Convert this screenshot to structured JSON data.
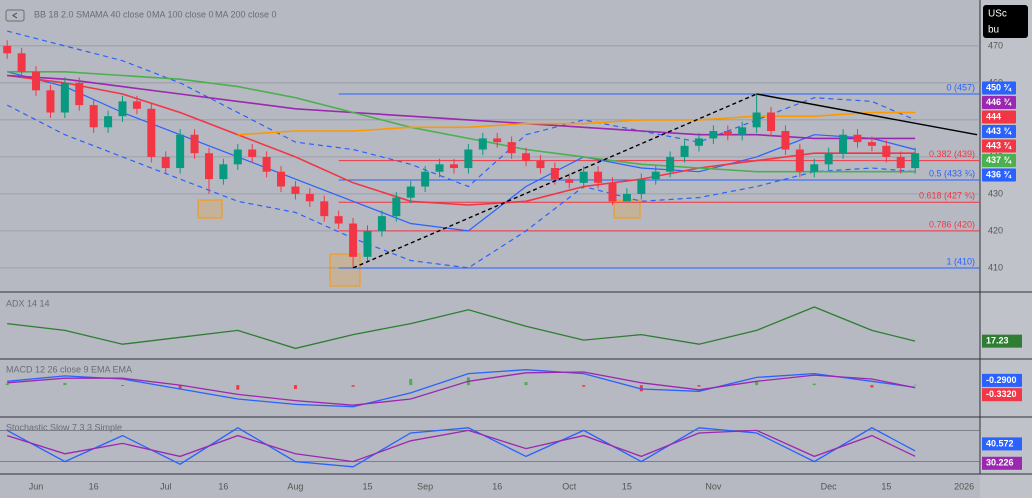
{
  "symbol": {
    "line1": "USc",
    "line2": "bu"
  },
  "chart_data": [
    {
      "type": "candlestick",
      "open": [
        470,
        468,
        463,
        458,
        452,
        460,
        454,
        448,
        451,
        455,
        453,
        440,
        437,
        446,
        441,
        434,
        438,
        442,
        440,
        436,
        432,
        430,
        428,
        424,
        422,
        413,
        420,
        424,
        429,
        432,
        436,
        438,
        437,
        442,
        445,
        444,
        441,
        439,
        437,
        434,
        433,
        436,
        433,
        428,
        430,
        434,
        436,
        440,
        443,
        445,
        447,
        446,
        448,
        452,
        447,
        442,
        436,
        438,
        441,
        446,
        444,
        443,
        440,
        437
      ],
      "high": [
        471.5,
        469.5,
        464.5,
        459.5,
        461.5,
        461.5,
        455.5,
        452.5,
        456.5,
        456.5,
        454.5,
        441.5,
        447.5,
        447.5,
        442.5,
        439.5,
        443.5,
        443.5,
        441.5,
        437.5,
        433.5,
        431.5,
        429.5,
        425.5,
        423.5,
        421.5,
        425.5,
        430.5,
        433.5,
        437.5,
        439.5,
        439.5,
        443.5,
        446.5,
        446.5,
        445.5,
        442.5,
        440.5,
        438.5,
        435.5,
        437.5,
        437.5,
        434.5,
        431.5,
        435.5,
        437.5,
        441.5,
        444.5,
        446.5,
        448.5,
        448.5,
        449.5,
        457,
        453.5,
        448.5,
        443.5,
        439.5,
        442.5,
        447.5,
        447.5,
        445.5,
        444.5,
        441.5,
        442.5
      ],
      "low": [
        466.5,
        461.5,
        456.5,
        450.5,
        450.5,
        452.5,
        446.5,
        446.5,
        449.5,
        451.5,
        438.5,
        435.5,
        435.5,
        439.5,
        430,
        432.5,
        436.5,
        438.5,
        434.5,
        430.5,
        428.5,
        426.5,
        422.5,
        420.5,
        410,
        411.5,
        418.5,
        422.5,
        427.5,
        430.5,
        434.5,
        435.5,
        435.5,
        440.5,
        442.5,
        439.5,
        437.5,
        435.5,
        432.5,
        431.5,
        431.5,
        431.5,
        427,
        428.5,
        428.5,
        432.5,
        434.5,
        438.5,
        441.5,
        443.5,
        444.5,
        444.5,
        446.5,
        445.5,
        440.5,
        434.5,
        434.5,
        436.5,
        439.5,
        442.5,
        441.5,
        438.5,
        435.5,
        435.5
      ],
      "close": [
        468,
        463,
        458,
        452,
        460,
        454,
        448,
        451,
        455,
        453,
        440,
        437,
        446,
        441,
        434,
        438,
        442,
        440,
        436,
        432,
        430,
        428,
        424,
        422,
        413,
        420,
        424,
        429,
        432,
        436,
        438,
        437,
        442,
        445,
        444,
        441,
        439,
        437,
        434,
        433,
        436,
        433,
        428,
        430,
        434,
        436,
        440,
        443,
        445,
        447,
        446,
        448,
        452,
        447,
        442,
        436,
        438,
        441,
        446,
        444,
        443,
        440,
        437,
        441
      ],
      "up_color": "#089981",
      "down_color": "#f23645",
      "xlim": [
        -0.5,
        67.5
      ],
      "xticks": [
        {
          "value": 2,
          "label": "Jun"
        },
        {
          "value": 6,
          "label": "16"
        },
        {
          "value": 11,
          "label": "Jul"
        },
        {
          "value": 15,
          "label": "16"
        },
        {
          "value": 20,
          "label": "Aug"
        },
        {
          "value": 25,
          "label": "15"
        },
        {
          "value": 29,
          "label": "Sep"
        },
        {
          "value": 34,
          "label": "16"
        },
        {
          "value": 39,
          "label": "Oct"
        },
        {
          "value": 43,
          "label": "15"
        },
        {
          "value": 49,
          "label": "Nov"
        },
        {
          "value": 57,
          "label": "Dec"
        },
        {
          "value": 61,
          "label": "15"
        },
        {
          "value": 66.4,
          "label": "2026"
        }
      ],
      "ylim": [
        403.5,
        482.4
      ],
      "yticks": [
        410,
        420,
        430,
        440,
        450,
        460,
        470
      ],
      "grid": true,
      "series": [
        {
          "name": "BB 18 2.0 SMA",
          "color": "#2962ff",
          "x": [
            0,
            4,
            8,
            12,
            16,
            20,
            24,
            28,
            32,
            36,
            40,
            44,
            48,
            52,
            56,
            60,
            63
          ],
          "values": [
            463,
            459,
            452,
            446,
            440,
            434,
            428,
            422,
            420,
            432,
            440,
            437,
            436,
            440,
            446,
            445,
            442
          ],
          "upper": [
            474,
            470,
            466,
            460,
            452,
            444,
            442,
            438,
            432,
            446,
            450,
            447,
            444,
            450,
            456,
            455,
            450
          ],
          "lower": [
            454,
            446,
            440,
            434,
            428,
            425,
            418,
            412,
            410,
            420,
            432,
            428,
            429,
            432,
            436,
            437,
            436
          ]
        },
        {
          "name": "MA 40 close 0",
          "color": "#f23645",
          "x": [
            0,
            4,
            8,
            12,
            16,
            20,
            24,
            28,
            32,
            36,
            40,
            44,
            48,
            52,
            56,
            60,
            63
          ],
          "values": [
            462,
            460,
            457,
            452,
            446,
            440,
            433,
            428,
            427,
            428,
            432,
            434,
            437,
            439,
            441,
            441,
            441
          ]
        },
        {
          "name": "MA 100 close 0",
          "color": "#9c27b0",
          "x": [
            0,
            4,
            8,
            12,
            16,
            20,
            24,
            28,
            32,
            36,
            40,
            44,
            48,
            52,
            56,
            60,
            63
          ],
          "values": [
            462,
            461,
            459,
            457,
            455,
            453,
            452,
            451,
            450,
            449,
            448,
            447,
            446,
            446,
            445,
            445,
            445
          ]
        },
        {
          "name": "MA 200 close 0",
          "color": "#4caf50",
          "x": [
            0,
            4,
            8,
            12,
            16,
            20,
            24,
            28,
            32,
            36,
            40,
            44,
            48,
            52,
            56,
            60,
            63
          ],
          "values": [
            463,
            463,
            462,
            461,
            459,
            456,
            452,
            448,
            445,
            442,
            440,
            438,
            437,
            436,
            436,
            436,
            436
          ]
        },
        {
          "color": "#ff9800",
          "x": [
            0,
            4,
            8,
            12,
            16,
            20,
            24,
            28,
            32,
            36,
            40,
            44,
            48,
            52,
            56,
            60,
            63
          ],
          "values": [
            null,
            null,
            null,
            null,
            446,
            447,
            447,
            448,
            448,
            449,
            449,
            450,
            450,
            451,
            451,
            452,
            452
          ]
        }
      ],
      "trendlines": [
        {
          "x": [
            24,
            52
          ],
          "values": [
            410,
            457
          ],
          "dashed": true,
          "color": "#000000"
        },
        {
          "x": [
            52,
            67.3
          ],
          "values": [
            457,
            446
          ],
          "dashed": false,
          "color": "#000000"
        }
      ],
      "fib": {
        "start": 23,
        "levels": [
          {
            "value": 457,
            "label": "0 (457)",
            "color": "#2962ff"
          },
          {
            "value": 439,
            "label": "0.382 (439)",
            "color": "#f23645"
          },
          {
            "value": 433.75,
            "label": "0.5 (433 ¾)",
            "color": "#2962ff"
          },
          {
            "value": 427.75,
            "label": "0.618 (427 ¾)",
            "color": "#f23645"
          },
          {
            "value": 420,
            "label": "0.786 (420)",
            "color": "#f23645"
          },
          {
            "value": 410,
            "label": "1 (410)",
            "color": "#2962ff"
          }
        ]
      },
      "price_labels": [
        {
          "label": "450 ¾",
          "color": "#2962ff"
        },
        {
          "label": "446 ¾",
          "color": "#9c27b0"
        },
        {
          "label": "444",
          "color": "#f23645"
        },
        {
          "label": "443 ¾",
          "color": "#2962ff"
        },
        {
          "label": "443 ¾",
          "color": "#f23645"
        },
        {
          "label": "437 ¾",
          "color": "#4caf50"
        },
        {
          "label": "436 ¾",
          "color": "#2962ff"
        }
      ]
    },
    {
      "type": "line",
      "title": "ADX 14 14",
      "xlim": [
        -0.5,
        67.5
      ],
      "ylim": [
        5,
        50
      ],
      "x": [
        0,
        4,
        8,
        12,
        16,
        20,
        24,
        28,
        32,
        36,
        40,
        44,
        48,
        52,
        56,
        60,
        63
      ],
      "series": [
        {
          "color": "#2e7d32",
          "values": [
            30,
            25,
            15,
            20,
            25,
            12,
            22,
            30,
            40,
            28,
            18,
            22,
            15,
            25,
            42,
            25,
            17.23
          ]
        }
      ]
    },
    {
      "type": "line",
      "title": "MACD 12 26 close 9 EMA EMA",
      "xlim": [
        -0.5,
        67.5
      ],
      "ylim": [
        -4,
        3
      ],
      "x": [
        0,
        4,
        8,
        12,
        16,
        20,
        24,
        28,
        32,
        36,
        40,
        44,
        48,
        52,
        56,
        60,
        63
      ],
      "histogram": [
        0.2,
        0.3,
        -0.1,
        -0.5,
        -0.6,
        -0.5,
        -0.2,
        0.8,
        1.0,
        0.4,
        -0.2,
        -0.8,
        -0.2,
        0.5,
        0.2,
        -0.3,
        0.042
      ],
      "up_color": "#4caf50",
      "down_color": "#f23645",
      "series": [
        {
          "color": "#2962ff",
          "values": [
            0.5,
            1.2,
            0.8,
            -0.5,
            -1.8,
            -2.5,
            -2.8,
            -1.0,
            1.5,
            2.0,
            1.5,
            -0.5,
            -0.8,
            1.0,
            1.5,
            0.5,
            -0.29
          ],
          "last_label": "-0.2900"
        },
        {
          "color": "#f23645",
          "line_color": "#9c27b0",
          "values": [
            0.3,
            0.9,
            0.9,
            0.0,
            -1.2,
            -2.0,
            -2.6,
            -1.8,
            0.5,
            1.6,
            1.7,
            0.3,
            -0.6,
            0.5,
            1.3,
            0.8,
            -0.332
          ],
          "last_label": "-0.3320"
        }
      ]
    },
    {
      "type": "line",
      "title": "Stochastic Slow 7 3 3 Simple",
      "xlim": [
        -0.5,
        67.5
      ],
      "ylim": [
        0,
        100
      ],
      "bands": [
        20,
        80
      ],
      "x": [
        0,
        4,
        8,
        12,
        16,
        20,
        24,
        28,
        32,
        36,
        40,
        44,
        48,
        52,
        56,
        60,
        63
      ],
      "series": [
        {
          "color": "#2962ff",
          "values": [
            80,
            20,
            70,
            15,
            85,
            20,
            10,
            75,
            85,
            30,
            80,
            20,
            85,
            75,
            20,
            85,
            40.572
          ]
        },
        {
          "color": "#9c27b0",
          "values": [
            70,
            35,
            55,
            30,
            70,
            35,
            20,
            60,
            80,
            45,
            70,
            30,
            75,
            80,
            30,
            70,
            30.226
          ]
        }
      ]
    }
  ]
}
